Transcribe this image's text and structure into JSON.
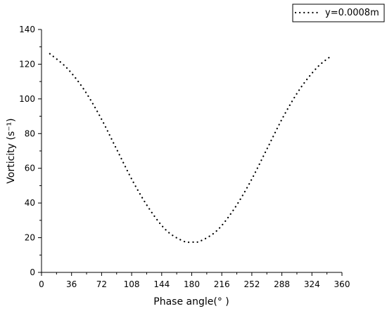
{
  "chart_data": {
    "type": "scatter",
    "xlabel": "Phase angle(° )",
    "ylabel": "Vorticity (s⁻¹)",
    "xlim": [
      0,
      360
    ],
    "ylim": [
      0,
      140
    ],
    "x_ticks": [
      0,
      36,
      72,
      108,
      144,
      180,
      216,
      252,
      288,
      324,
      360
    ],
    "y_ticks": [
      0,
      20,
      40,
      60,
      80,
      100,
      120,
      140
    ],
    "grid": false,
    "legend_position": "top-right",
    "marker_color": "#000000",
    "series": [
      {
        "name": "y=0.0008m",
        "style": "dotted",
        "x": [
          10,
          30,
          50,
          70,
          90,
          110,
          130,
          150,
          170,
          180,
          190,
          210,
          230,
          250,
          270,
          290,
          310,
          330,
          345
        ],
        "y": [
          126,
          118,
          106,
          90,
          71,
          52,
          36,
          24,
          18,
          17.5,
          18,
          24,
          36,
          52,
          71,
          90,
          106,
          118,
          124
        ]
      }
    ]
  }
}
